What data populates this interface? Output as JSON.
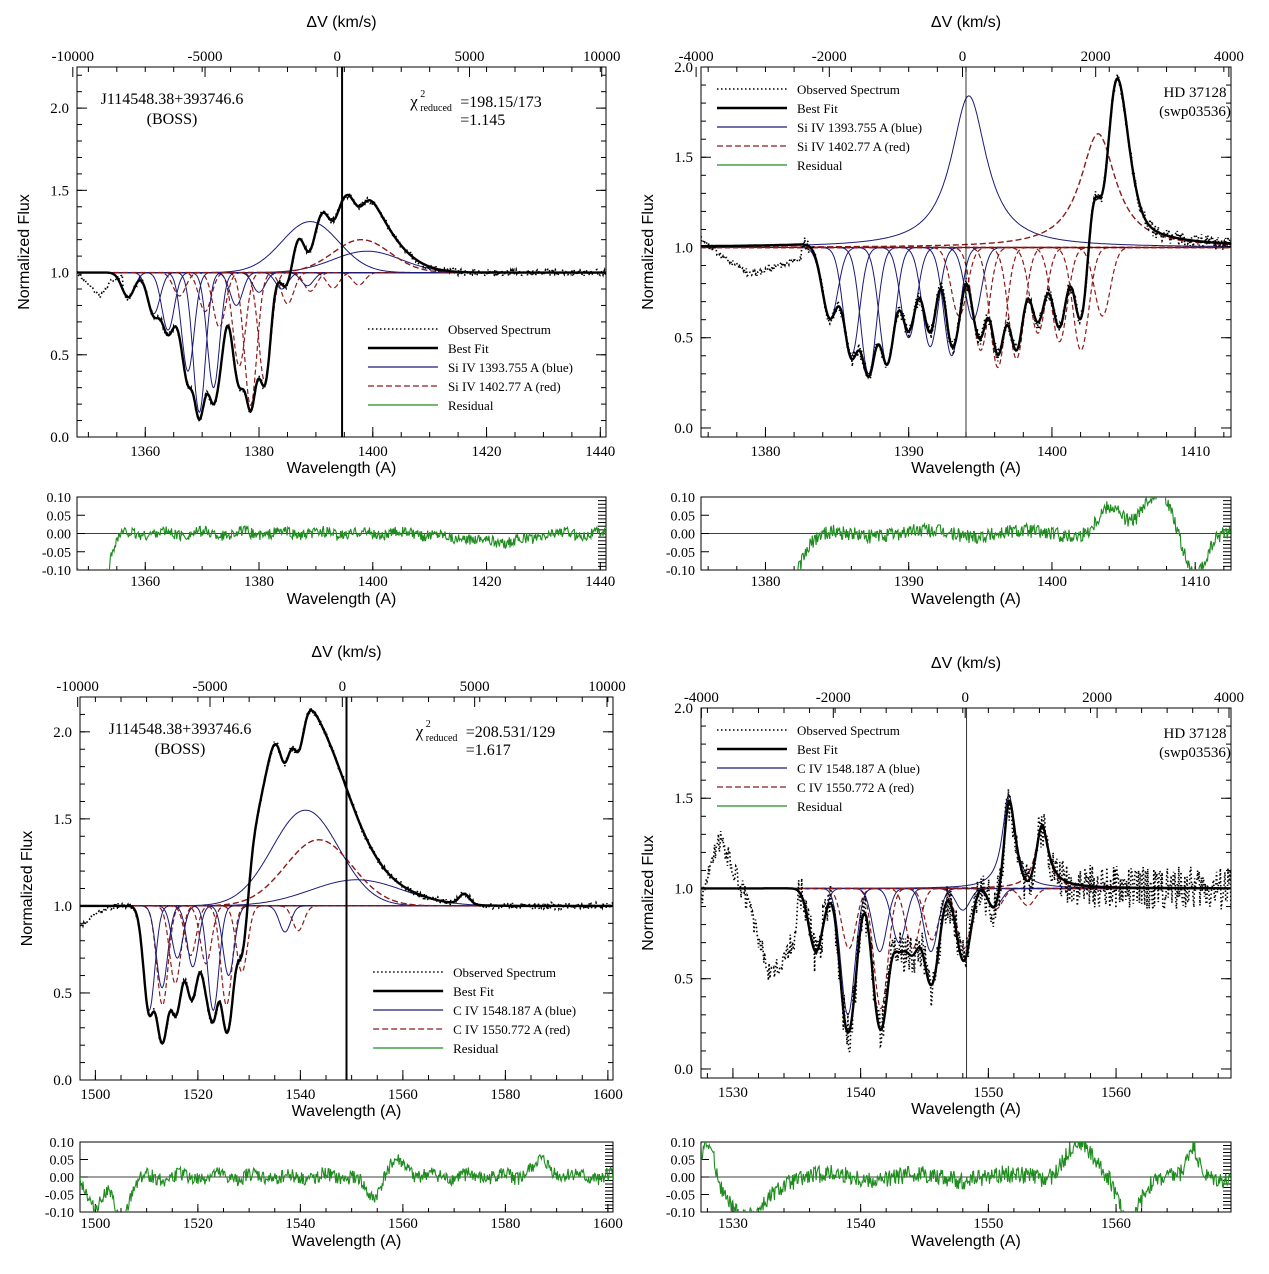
{
  "chart_data": [
    {
      "type": "line",
      "id": "p1",
      "title": "",
      "object": "J114548.38+393746.6",
      "source": "(BOSS)",
      "chi2_text": "=198.15/173",
      "chi2_value": "=1.145",
      "chi2_symbol": "χ",
      "chi2_sup": "2",
      "chi2_sub": "reduced",
      "xlabel": "Wavelength (A)",
      "ylabel": "Normalized Flux",
      "top_xlabel": "ΔV (km/s)",
      "xlim": [
        1348,
        1441
      ],
      "ylim": [
        0,
        2.25
      ],
      "xticks": [
        1360,
        1380,
        1400,
        1420,
        1440
      ],
      "yticks": [
        0.0,
        0.5,
        1.0,
        1.5,
        2.0
      ],
      "top_ticks": [
        -10000,
        -5000,
        0,
        5000,
        10000
      ],
      "top_ref_wavelength": 1393.755,
      "zero_line_wavelength": 1394.6,
      "legend_position": "lower-right",
      "legend": [
        {
          "label": "Observed Spectrum",
          "style": "dotted",
          "color": "#000000"
        },
        {
          "label": "Best Fit",
          "style": "thick",
          "color": "#000000"
        },
        {
          "label": "Si IV 1393.755 A (blue)",
          "style": "solid",
          "color": "#1a1a7a"
        },
        {
          "label": "Si IV 1402.77 A (red)",
          "style": "dashed",
          "color": "#8b1a1a"
        },
        {
          "label": "Residual",
          "style": "solid",
          "color": "#1e8c1e"
        }
      ],
      "blue_absorption_centers": [
        1357,
        1361.5,
        1364,
        1367.5,
        1369.5,
        1372,
        1376,
        1380,
        1384,
        1388.5
      ],
      "blue_absorption_depths": [
        0.15,
        0.25,
        0.35,
        0.6,
        0.85,
        0.7,
        0.2,
        0.12,
        0.1,
        0.08
      ],
      "blue_emission": [
        {
          "center": 1389,
          "amp": 0.31,
          "width": 5
        },
        {
          "center": 1399,
          "amp": 0.13,
          "width": 6
        }
      ],
      "red_emission_amp": 0.2,
      "fit_emission_extra": [
        {
          "center": 1398,
          "amp": 0.12,
          "width": 3
        }
      ],
      "observed_anchor_points": [
        [
          1348,
          1.0
        ],
        [
          1350,
          0.93
        ],
        [
          1352,
          0.85
        ],
        [
          1354,
          0.95
        ],
        [
          1356,
          0.98
        ]
      ],
      "noise_amp": 0.02,
      "residual": {
        "ylim": [
          -0.1,
          0.1
        ],
        "yticks": [
          0.1,
          0.05,
          0.0,
          -0.05,
          -0.1
        ],
        "ytick_labels": [
          "0.10",
          "0.05",
          "0.00",
          "-0.05",
          "-0.10"
        ],
        "xlabel": "Wavelength (A)",
        "noise": 0.015,
        "dips": [
          [
            1350,
            -0.15,
            2
          ],
          [
            1352,
            -0.1,
            1.5
          ],
          [
            1418,
            -0.015,
            4
          ],
          [
            1425,
            -0.02,
            3
          ]
        ]
      }
    },
    {
      "type": "line",
      "id": "p2",
      "title": "",
      "object": "HD 37128",
      "source": "(swp03536)",
      "xlabel": "Wavelength (A)",
      "ylabel": "Normalized Flux",
      "top_xlabel": "ΔV (km/s)",
      "xlim": [
        1375.5,
        1412.5
      ],
      "ylim": [
        -0.05,
        2.0
      ],
      "xticks": [
        1380,
        1390,
        1400,
        1410
      ],
      "yticks": [
        0.0,
        0.5,
        1.0,
        1.5,
        2.0
      ],
      "top_ticks": [
        -4000,
        -2000,
        0,
        2000,
        4000
      ],
      "top_ref_wavelength": 1393.755,
      "zero_line_wavelength": 1394.0,
      "legend_position": "upper-left",
      "legend": [
        {
          "label": "Observed Spectrum",
          "style": "dotted",
          "color": "#000000"
        },
        {
          "label": "Best Fit",
          "style": "thick",
          "color": "#000000"
        },
        {
          "label": "Si IV 1393.755 A (blue)",
          "style": "solid",
          "color": "#1a1a7a"
        },
        {
          "label": "Si IV 1402.77 A (red)",
          "style": "dashed",
          "color": "#8b1a1a"
        },
        {
          "label": "Residual",
          "style": "solid",
          "color": "#1e8c1e"
        }
      ],
      "blue_absorption_centers": [
        1384.5,
        1386,
        1387.2,
        1388.5,
        1390,
        1391.5,
        1393,
        1394.5
      ],
      "blue_absorption_depths": [
        0.4,
        0.6,
        0.7,
        0.65,
        0.5,
        0.55,
        0.6,
        0.4
      ],
      "blue_emission": [
        {
          "center": 1394.2,
          "amp": 0.84,
          "width": 1.5
        }
      ],
      "red_emission_amp": 0.63,
      "fit_emission_extra": [
        {
          "center": 1404.3,
          "amp": 0.73,
          "width": 0.9
        }
      ],
      "observed_anchor_points": [
        [
          1375.5,
          1.05
        ],
        [
          1377,
          0.95
        ],
        [
          1379,
          0.85
        ],
        [
          1381,
          0.9
        ],
        [
          1382.5,
          0.95
        ]
      ],
      "noise_amp": 0.04,
      "residual": {
        "ylim": [
          -0.1,
          0.1
        ],
        "yticks": [
          0.1,
          0.05,
          0.0,
          -0.05,
          -0.1
        ],
        "ytick_labels": [
          "0.10",
          "0.05",
          "0.00",
          "-0.05",
          "-0.10"
        ],
        "xlabel": "Wavelength (A)",
        "noise": 0.02,
        "dips": [
          [
            1376.5,
            -0.12,
            1.5
          ],
          [
            1379,
            -0.1,
            2
          ],
          [
            1381.5,
            -0.1,
            1
          ],
          [
            1404,
            0.07,
            0.8
          ],
          [
            1407.5,
            0.12,
            1
          ],
          [
            1410,
            -0.12,
            0.8
          ]
        ]
      }
    },
    {
      "type": "line",
      "id": "p3",
      "title": "",
      "object": "J114548.38+393746.6",
      "source": "(BOSS)",
      "chi2_text": "=208.531/129",
      "chi2_value": "=1.617",
      "chi2_symbol": "χ",
      "chi2_sup": "2",
      "chi2_sub": "reduced",
      "xlabel": "Wavelength (A)",
      "ylabel": "Normalized Flux",
      "top_xlabel": "ΔV (km/s)",
      "xlim": [
        1497,
        1601
      ],
      "ylim": [
        0,
        2.2
      ],
      "xticks": [
        1500,
        1520,
        1540,
        1560,
        1580,
        1600
      ],
      "yticks": [
        0.0,
        0.5,
        1.0,
        1.5,
        2.0
      ],
      "top_ticks": [
        -10000,
        -5000,
        0,
        5000,
        10000
      ],
      "top_ref_wavelength": 1548.187,
      "zero_line_wavelength": 1549.0,
      "legend_position": "lower-right",
      "legend": [
        {
          "label": "Observed Spectrum",
          "style": "dotted",
          "color": "#000000"
        },
        {
          "label": "Best Fit",
          "style": "thick",
          "color": "#000000"
        },
        {
          "label": "C IV 1548.187 A (blue)",
          "style": "solid",
          "color": "#1a1a7a"
        },
        {
          "label": "C IV 1550.772 A (red)",
          "style": "dashed",
          "color": "#8b1a1a"
        },
        {
          "label": "Residual",
          "style": "solid",
          "color": "#1e8c1e"
        }
      ],
      "blue_absorption_centers": [
        1510.5,
        1513,
        1516,
        1519,
        1523,
        1526,
        1537
      ],
      "blue_absorption_depths": [
        0.6,
        0.47,
        0.3,
        0.35,
        0.6,
        0.4,
        0.15
      ],
      "blue_emission": [
        {
          "center": 1541,
          "amp": 0.55,
          "width": 6.5
        },
        {
          "center": 1551,
          "amp": 0.15,
          "width": 9
        }
      ],
      "red_emission_amp": 0.38,
      "fit_emission_extra": [
        {
          "center": 1536,
          "amp": 0.45,
          "width": 4
        },
        {
          "center": 1572,
          "amp": 0.06,
          "width": 1
        }
      ],
      "observed_anchor_points": [
        [
          1497,
          0.88
        ],
        [
          1500,
          0.95
        ],
        [
          1503,
          1.0
        ]
      ],
      "noise_amp": 0.02,
      "residual": {
        "ylim": [
          -0.1,
          0.1
        ],
        "yticks": [
          0.1,
          0.05,
          0.0,
          -0.05,
          -0.1
        ],
        "ytick_labels": [
          "0.10",
          "0.05",
          "0.00",
          "-0.05",
          "-0.10"
        ],
        "xlabel": "Wavelength (A)",
        "noise": 0.02,
        "dips": [
          [
            1500,
            -0.08,
            1.5
          ],
          [
            1505,
            -0.12,
            1.5
          ],
          [
            1554,
            -0.06,
            1.5
          ],
          [
            1559,
            0.04,
            2
          ],
          [
            1587,
            0.04,
            2
          ]
        ]
      }
    },
    {
      "type": "line",
      "id": "p4",
      "title": "",
      "object": "HD 37128",
      "source": "(swp03536)",
      "xlabel": "Wavelength (A)",
      "ylabel": "Normalized Flux",
      "top_xlabel": "ΔV (km/s)",
      "xlim": [
        1527.5,
        1569
      ],
      "ylim": [
        -0.05,
        2.0
      ],
      "xticks": [
        1530,
        1540,
        1550,
        1560
      ],
      "yticks": [
        0.0,
        0.5,
        1.0,
        1.5,
        2.0
      ],
      "top_ticks": [
        -4000,
        -2000,
        0,
        2000,
        4000
      ],
      "top_ref_wavelength": 1548.187,
      "zero_line_wavelength": 1548.3,
      "legend_position": "upper-left",
      "legend": [
        {
          "label": "Observed Spectrum",
          "style": "dotted",
          "color": "#000000"
        },
        {
          "label": "Best Fit",
          "style": "thick",
          "color": "#000000"
        },
        {
          "label": "C IV 1548.187 A (blue)",
          "style": "solid",
          "color": "#1a1a7a"
        },
        {
          "label": "C IV 1550.772 A (red)",
          "style": "dashed",
          "color": "#8b1a1a"
        },
        {
          "label": "Residual",
          "style": "solid",
          "color": "#1e8c1e"
        }
      ],
      "blue_absorption_centers": [
        1536.5,
        1539,
        1541.5,
        1543,
        1545.5,
        1548,
        1550.5
      ],
      "blue_absorption_depths": [
        0.35,
        0.7,
        0.35,
        0.3,
        0.35,
        0.12,
        0.1
      ],
      "blue_emission": [
        {
          "center": 1551.6,
          "amp": 0.52,
          "width": 0.6
        }
      ],
      "red_emission_amp": 0.34,
      "fit_emission_extra": [],
      "observed_anchor_points": [
        [
          1527.5,
          0.95
        ],
        [
          1529,
          1.28
        ],
        [
          1531,
          0.95
        ],
        [
          1533,
          0.5
        ],
        [
          1535,
          0.75
        ]
      ],
      "noise_amp": 0.12,
      "residual": {
        "ylim": [
          -0.1,
          0.1
        ],
        "yticks": [
          0.1,
          0.05,
          0.0,
          -0.05,
          -0.1
        ],
        "ytick_labels": [
          "0.10",
          "0.05",
          "0.00",
          "-0.05",
          "-0.10"
        ],
        "xlabel": "Wavelength (A)",
        "noise": 0.025,
        "dips": [
          [
            1528,
            0.12,
            0.6
          ],
          [
            1531,
            -0.12,
            1.5
          ],
          [
            1557,
            0.1,
            1
          ],
          [
            1561,
            -0.12,
            0.8
          ],
          [
            1566,
            0.08,
            0.4
          ]
        ]
      }
    }
  ],
  "colors": {
    "observed": "#000000",
    "fit": "#000000",
    "blue_component": "#1a1a7a",
    "red_component": "#8b1a1a",
    "residual": "#1e8c1e",
    "axis": "#000000"
  }
}
